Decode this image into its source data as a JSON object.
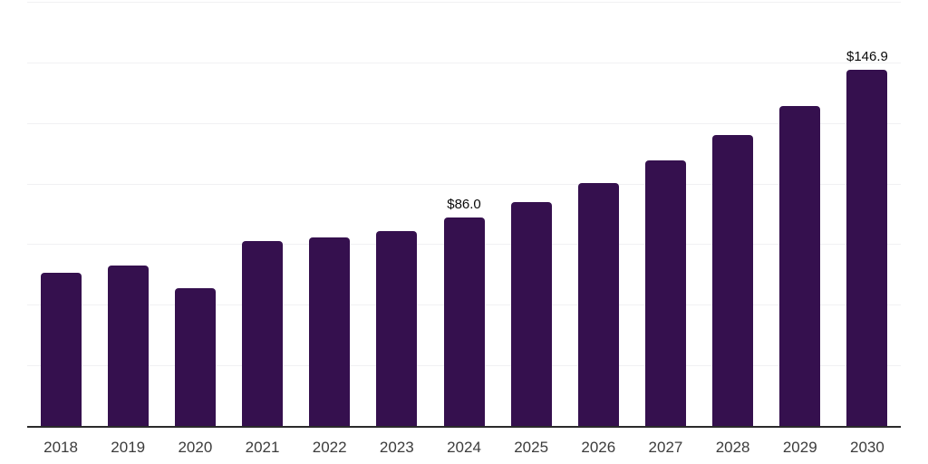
{
  "chart_data": {
    "type": "bar",
    "title": "",
    "xlabel": "",
    "ylabel": "",
    "categories": [
      "2018",
      "2019",
      "2020",
      "2021",
      "2022",
      "2023",
      "2024",
      "2025",
      "2026",
      "2027",
      "2028",
      "2029",
      "2030"
    ],
    "values": [
      63.1,
      66.1,
      56.8,
      76.2,
      77.7,
      80.3,
      86.0,
      92.3,
      100.4,
      109.4,
      119.9,
      132.1,
      146.9
    ],
    "point_labels": [
      "",
      "",
      "",
      "",
      "",
      "",
      "$86.0",
      "",
      "",
      "",
      "",
      "",
      "$146.9"
    ],
    "ylim": [
      0,
      175
    ],
    "gridline_step": 25,
    "grid": true,
    "legend_position": "none",
    "colors": {
      "bar": "#35104E",
      "gridline": "#f1f1f3",
      "axis": "#2b2b2b",
      "x_label": "#3c3c3c",
      "value_label": "#0a0a0a",
      "background": "#ffffff"
    }
  }
}
